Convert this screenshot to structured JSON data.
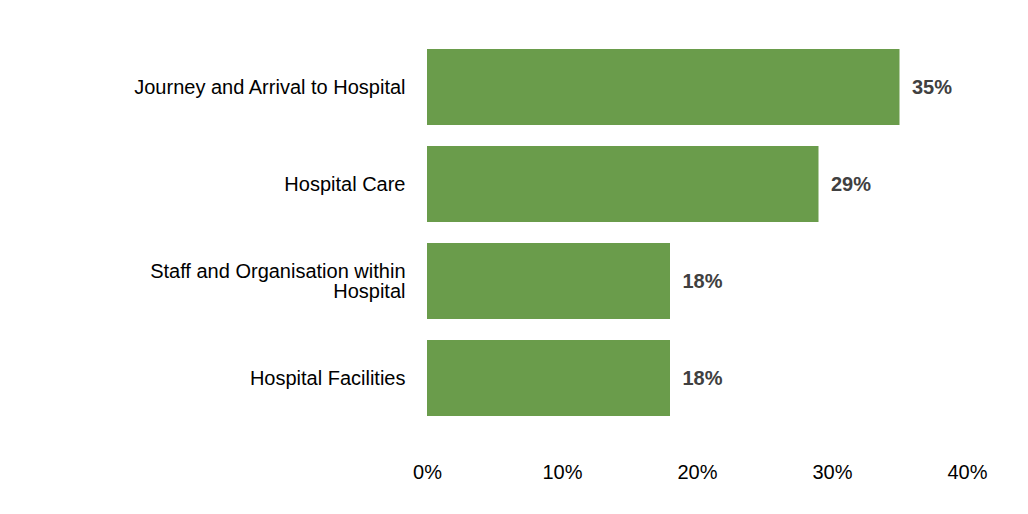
{
  "chart_data": {
    "type": "bar",
    "orientation": "horizontal",
    "categories": [
      "Journey and Arrival to Hospital",
      "Hospital Care",
      "Staff and Organisation within Hospital",
      "Hospital Facilities"
    ],
    "values": [
      35,
      29,
      18,
      18
    ],
    "value_labels": [
      "35%",
      "29%",
      "18%",
      "18%"
    ],
    "data_labels": true,
    "color": "#6a9c4b",
    "xlim": [
      0,
      40
    ],
    "xticks": [
      {
        "value": 0,
        "label": "0%"
      },
      {
        "value": 10,
        "label": "10%"
      },
      {
        "value": 20,
        "label": "20%"
      },
      {
        "value": 30,
        "label": "30%"
      },
      {
        "value": 40,
        "label": "40%"
      }
    ],
    "grid": false
  }
}
